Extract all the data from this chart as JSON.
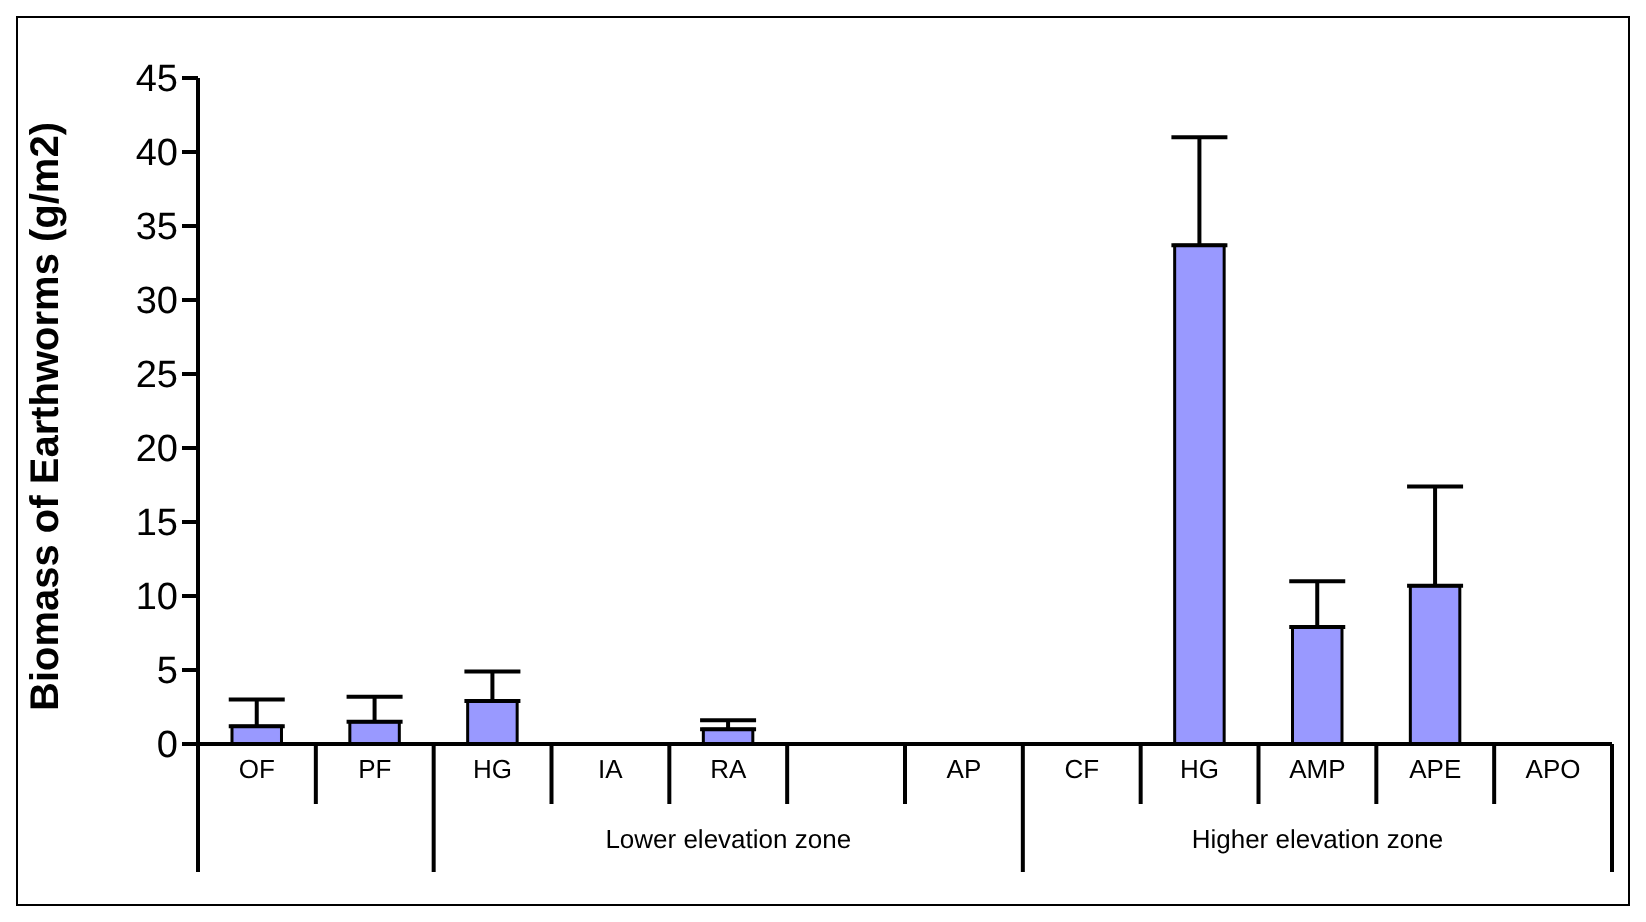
{
  "chart_data": {
    "type": "bar",
    "ylabel": "Biomass of Earthworms (g/m2)",
    "categories": [
      "OF",
      "PF",
      "HG",
      "IA",
      "RA",
      null,
      "AP",
      "CF",
      "HG",
      "AMP",
      "APE",
      "APO"
    ],
    "values": [
      1.2,
      1.5,
      2.9,
      0,
      1.0,
      null,
      0,
      0,
      33.7,
      7.9,
      10.7,
      0
    ],
    "errors": [
      [
        1.2,
        3.0
      ],
      [
        1.5,
        3.2
      ],
      [
        2.9,
        4.9
      ],
      null,
      [
        1.0,
        1.6
      ],
      null,
      null,
      null,
      [
        33.7,
        41.0
      ],
      [
        7.9,
        11.0
      ],
      [
        10.7,
        17.4
      ],
      null
    ],
    "color": "#9999ff",
    "ylim": [
      0,
      45
    ],
    "yticks": [
      0,
      5,
      10,
      15,
      20,
      25,
      30,
      35,
      40,
      45
    ],
    "annotations": [
      "Lower elevation zone",
      "Higher elevation zone"
    ]
  }
}
